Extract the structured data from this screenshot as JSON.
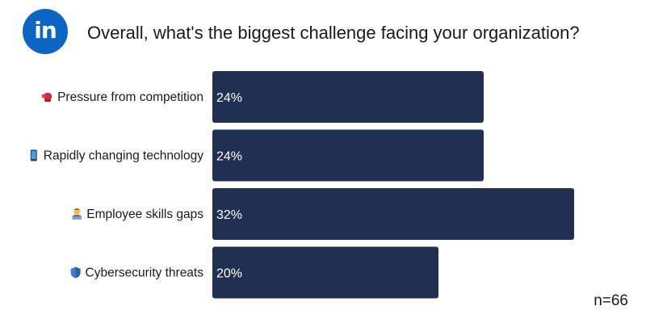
{
  "header": {
    "logo_text": "in",
    "title": "Overall, what's the biggest challenge facing your organization?"
  },
  "colors": {
    "brand": "#0a66c2",
    "bar": "#1f3050",
    "bar_text": "#ffffff",
    "label_text": "#1a1a1a"
  },
  "chart_data": {
    "type": "bar",
    "orientation": "horizontal",
    "title": "Overall, what's the biggest challenge facing your organization?",
    "categories": [
      "Pressure from competition",
      "Rapidly changing technology",
      "Employee skills gaps",
      "Cybersecurity threats"
    ],
    "category_icons": [
      "boxing-glove-icon",
      "mobile-phone-icon",
      "technologist-icon",
      "shield-icon"
    ],
    "values": [
      24,
      24,
      32,
      20
    ],
    "value_labels": [
      "24%",
      "24%",
      "32%",
      "20%"
    ],
    "unit": "%",
    "xlim": [
      0,
      100
    ],
    "grid": false,
    "legend": "none"
  },
  "footer": {
    "count_label": "n=66"
  }
}
